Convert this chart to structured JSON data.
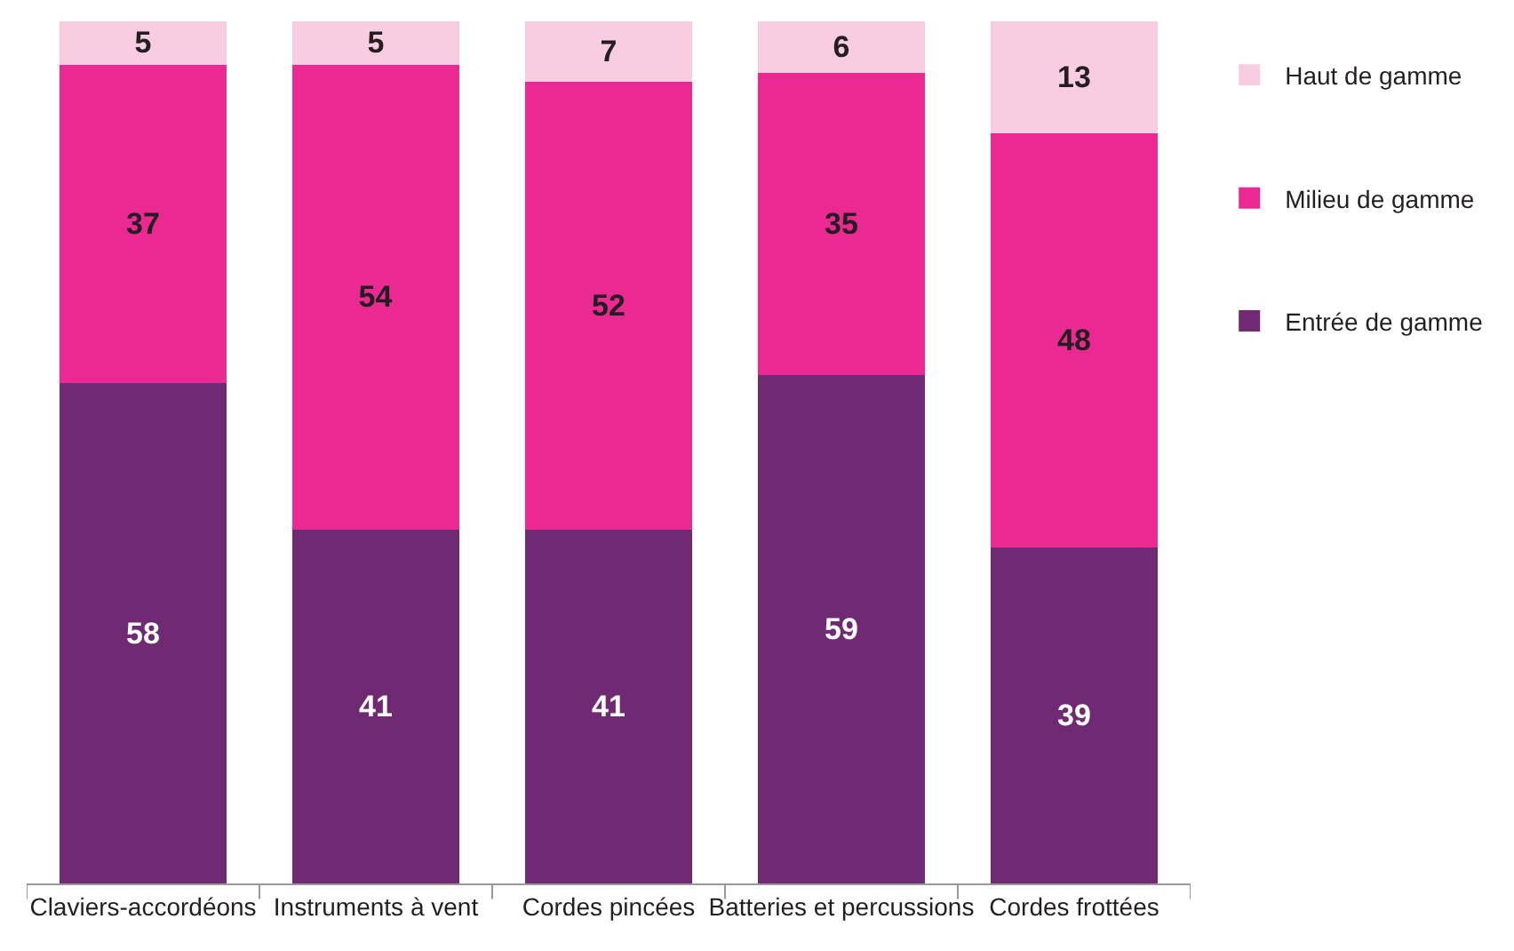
{
  "chart_data": {
    "type": "bar",
    "stacked": true,
    "categories": [
      "Claviers-accordéons",
      "Instruments à vent",
      "Cordes pincées",
      "Batteries et percussions",
      "Cordes frottées"
    ],
    "series": [
      {
        "name": "Entrée de gamme",
        "color": "#6f2a73",
        "values": [
          58,
          41,
          41,
          59,
          39
        ]
      },
      {
        "name": "Milieu de gamme",
        "color": "#ea2a92",
        "values": [
          37,
          54,
          52,
          35,
          48
        ]
      },
      {
        "name": "Haut de gamme",
        "color": "#f8cde1",
        "values": [
          5,
          5,
          7,
          6,
          13
        ]
      }
    ],
    "ylim": [
      0,
      100
    ],
    "tick_labels": "x",
    "data_labels": true,
    "legend": "right",
    "grid": false
  }
}
